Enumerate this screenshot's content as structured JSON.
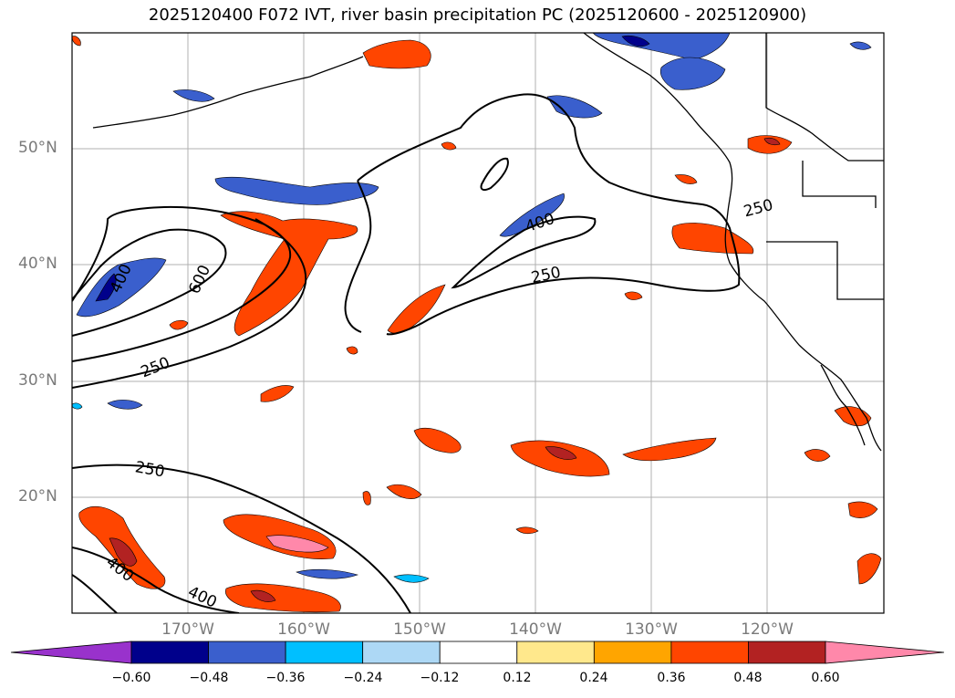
{
  "title": "2025120400 F072 IVT, river basin precipitation PC (2025120600 - 2025120900)",
  "map": {
    "lat_labels": [
      "50°N",
      "40°N",
      "30°N",
      "20°N"
    ],
    "lon_labels": [
      "170°W",
      "160°W",
      "150°W",
      "140°W",
      "130°W",
      "120°W"
    ],
    "ivt_contour_labels": [
      "400",
      "600",
      "250",
      "400",
      "250",
      "250",
      "250",
      "400",
      "400"
    ]
  },
  "colorbar": {
    "ticks": [
      "−0.60",
      "−0.48",
      "−0.36",
      "−0.24",
      "−0.12",
      "0.12",
      "0.24",
      "0.36",
      "0.48",
      "0.60"
    ],
    "colors": [
      "#9932cc",
      "#00008b",
      "#3a5fcd",
      "#00bfff",
      "#add8f5",
      "#ffffff",
      "#ffe88c",
      "#ffa500",
      "#ff4500",
      "#b22222",
      "#ff88aa"
    ]
  }
}
